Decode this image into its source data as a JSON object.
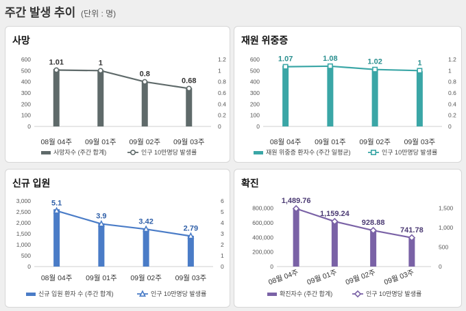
{
  "page": {
    "title": "주간 발생 추이",
    "unit_note": "(단위 : 명)"
  },
  "chart_data": [
    {
      "id": "death",
      "type": "bar",
      "title": "사망",
      "categories": [
        "08월 04주",
        "09월 01주",
        "09월 02주",
        "09월 03주"
      ],
      "ylim": [
        0,
        600
      ],
      "yticks": [
        "0",
        "100",
        "200",
        "300",
        "400",
        "500",
        "600"
      ],
      "y2lim": [
        0,
        1.2
      ],
      "y2ticks": [
        "0",
        "0.2",
        "0.4",
        "0.6",
        "0.8",
        "1",
        "1.2"
      ],
      "series": [
        {
          "name": "사망자수 (주간 합계)",
          "kind": "bar",
          "axis": "left",
          "values": [
            515,
            505,
            405,
            345
          ]
        },
        {
          "name": "인구 10만명당 발생률",
          "kind": "line",
          "axis": "right",
          "marker": "circle",
          "values": [
            1.01,
            1,
            0.8,
            0.68
          ],
          "labels": [
            "1.01",
            "1",
            "0.8",
            "0.68"
          ]
        }
      ],
      "colors": {
        "bar": "#5f6a6a",
        "line": "#5f6a6a",
        "label": "#333333"
      }
    },
    {
      "id": "severe",
      "type": "bar",
      "title": "재원 위중증",
      "categories": [
        "08월 04주",
        "09월 01주",
        "09월 02주",
        "09월 03주"
      ],
      "ylim": [
        0,
        600
      ],
      "yticks": [
        "0",
        "100",
        "200",
        "300",
        "400",
        "500",
        "600"
      ],
      "y2lim": [
        0,
        1.2
      ],
      "y2ticks": [
        "0",
        "0.2",
        "0.4",
        "0.6",
        "0.8",
        "1",
        "1.2"
      ],
      "series": [
        {
          "name": "재원 위중증 환자수 (주간 일평균)",
          "kind": "bar",
          "axis": "left",
          "values": [
            545,
            530,
            505,
            495
          ]
        },
        {
          "name": "인구 10만명당 발생률",
          "kind": "line",
          "axis": "right",
          "marker": "square",
          "values": [
            1.07,
            1.08,
            1.02,
            1
          ],
          "labels": [
            "1.07",
            "1.08",
            "1.02",
            "1"
          ]
        }
      ],
      "colors": {
        "bar": "#3aa6a6",
        "line": "#3aa6a6",
        "label": "#2a8f8f"
      }
    },
    {
      "id": "admission",
      "type": "bar",
      "title": "신규 입원",
      "categories": [
        "08월 04주",
        "09월 01주",
        "09월 02주",
        "09월 03주"
      ],
      "ylim": [
        0,
        3000
      ],
      "yticks": [
        "0",
        "500",
        "1,000",
        "1,500",
        "2,000",
        "2,500",
        "3,000"
      ],
      "y2lim": [
        0,
        6
      ],
      "y2ticks": [
        "0",
        "1",
        "2",
        "3",
        "4",
        "5",
        "6"
      ],
      "series": [
        {
          "name": "신규 입원 환자 수 (주간 합계)",
          "kind": "bar",
          "axis": "left",
          "values": [
            2620,
            1975,
            1730,
            1410
          ]
        },
        {
          "name": "인구 10만명당 발생률",
          "kind": "line",
          "axis": "right",
          "marker": "triangle",
          "values": [
            5.1,
            3.9,
            3.42,
            2.79
          ],
          "labels": [
            "5.1",
            "3.9",
            "3.42",
            "2.79"
          ]
        }
      ],
      "colors": {
        "bar": "#4a7cc7",
        "line": "#4a7cc7",
        "label": "#2f5fa8"
      }
    },
    {
      "id": "confirmed",
      "type": "bar",
      "title": "확진",
      "categories": [
        "08월 04주",
        "09월 01주",
        "09월 02주",
        "09월 03주"
      ],
      "ylim": [
        0,
        900000
      ],
      "yticks": [
        "0",
        "200,000",
        "400,000",
        "600,000",
        "800,000"
      ],
      "y2lim": [
        0,
        1687.5
      ],
      "y2ticks": [
        "0",
        "500",
        "1,000",
        "1,500"
      ],
      "series": [
        {
          "name": "확진자수 (주간 합계)",
          "kind": "bar",
          "axis": "left",
          "values": [
            800000,
            620000,
            500000,
            400000
          ]
        },
        {
          "name": "인구 10만명당 발생률",
          "kind": "line",
          "axis": "right",
          "marker": "diamond",
          "values": [
            1489.76,
            1159.24,
            928.88,
            741.78
          ],
          "labels": [
            "1,489.76",
            "1,159.24",
            "928.88",
            "741.78"
          ]
        }
      ],
      "colors": {
        "bar": "#7a62a6",
        "line": "#7a62a6",
        "label": "#4b3a73"
      }
    }
  ]
}
